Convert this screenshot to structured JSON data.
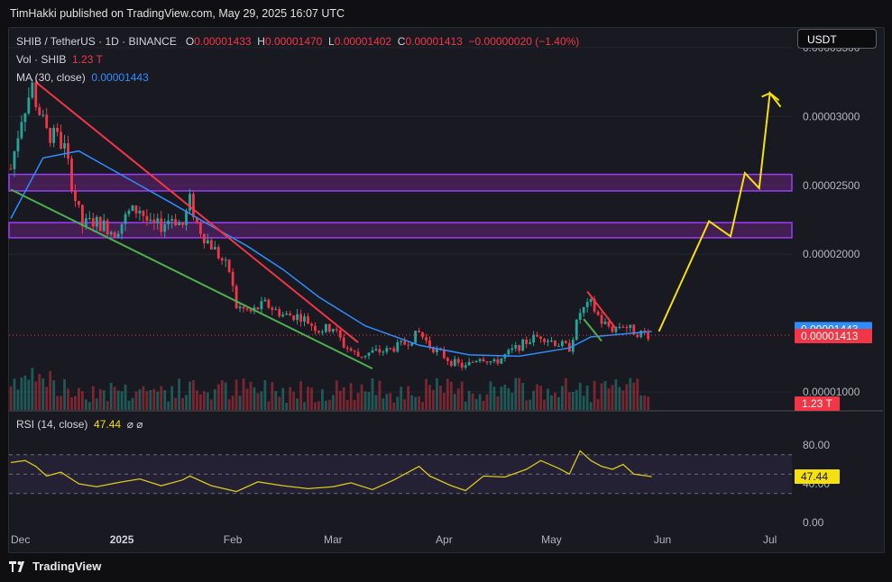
{
  "publisher": "TimHakki published on TradingView.com, May 29, 2025 16:07 UTC",
  "legend": {
    "symbol": "SHIB / TetherUS · 1D · BINANCE",
    "o_label": "O",
    "o_value": "0.00001433",
    "h_label": "H",
    "h_value": "0.00001470",
    "l_label": "L",
    "l_value": "0.00001402",
    "c_label": "C",
    "c_value": "0.00001413",
    "change": "−0.00000020 (−1.40%)",
    "vol_label": "Vol · SHIB",
    "vol_value": "1.23 T",
    "ma_label": "MA (30, close)",
    "ma_value": "0.00001443"
  },
  "currency_button": "USDT",
  "rsi_legend": {
    "label": "RSI (14, close)",
    "value": "47.44",
    "icons": "⌀ ⌀"
  },
  "footer": {
    "brand": "TradingView",
    "logo": "tradingview-logo"
  },
  "colors": {
    "up": "#26a69a",
    "down": "#f23645",
    "ma": "#2f8cff",
    "zone": "#9c27b0",
    "projection": "#f5e10a",
    "rsi": "#d8c81e"
  },
  "chart_data": {
    "type": "candlestick",
    "price_axis": {
      "ticks": [
        "0.00003500",
        "0.00003000",
        "0.00002500",
        "0.00002000",
        "0.00001000"
      ],
      "range": [
        8.7e-06,
        3.65e-05
      ]
    },
    "time_axis": {
      "ticks": [
        "Dec",
        "2025",
        "Feb",
        "Mar",
        "Apr",
        "May",
        "Jun",
        "Jul"
      ]
    },
    "price_labels": {
      "ma": "0.00001443",
      "last": "0.00001413",
      "volume": "1.23 T"
    },
    "close_path": [
      [
        "2024-12-01",
        2.62e-05
      ],
      [
        "2024-12-04",
        3e-05
      ],
      [
        "2024-12-07",
        3.22e-05
      ],
      [
        "2024-12-08",
        3.11e-05
      ],
      [
        "2024-12-11",
        2.88e-05
      ],
      [
        "2024-12-14",
        2.84e-05
      ],
      [
        "2024-12-16",
        2.77e-05
      ],
      [
        "2024-12-19",
        2.4e-05
      ],
      [
        "2024-12-21",
        2.21e-05
      ],
      [
        "2024-12-24",
        2.24e-05
      ],
      [
        "2024-12-27",
        2.21e-05
      ],
      [
        "2024-12-30",
        2.16e-05
      ],
      [
        "2025-01-03",
        2.3e-05
      ],
      [
        "2025-01-06",
        2.33e-05
      ],
      [
        "2025-01-09",
        2.2e-05
      ],
      [
        "2025-01-12",
        2.21e-05
      ],
      [
        "2025-01-15",
        2.27e-05
      ],
      [
        "2025-01-18",
        2.21e-05
      ],
      [
        "2025-01-20",
        2.39e-05
      ],
      [
        "2025-01-22",
        2.22e-05
      ],
      [
        "2025-01-24",
        2.13e-05
      ],
      [
        "2025-01-27",
        2.03e-05
      ],
      [
        "2025-01-31",
        1.88e-05
      ],
      [
        "2025-02-02",
        1.62e-05
      ],
      [
        "2025-02-06",
        1.58e-05
      ],
      [
        "2025-02-10",
        1.64e-05
      ],
      [
        "2025-02-15",
        1.56e-05
      ],
      [
        "2025-02-20",
        1.55e-05
      ],
      [
        "2025-02-25",
        1.45e-05
      ],
      [
        "2025-03-01",
        1.47e-05
      ],
      [
        "2025-03-04",
        1.34e-05
      ],
      [
        "2025-03-08",
        1.26e-05
      ],
      [
        "2025-03-12",
        1.29e-05
      ],
      [
        "2025-03-16",
        1.3e-05
      ],
      [
        "2025-03-21",
        1.35e-05
      ],
      [
        "2025-03-25",
        1.43e-05
      ],
      [
        "2025-03-28",
        1.34e-05
      ],
      [
        "2025-04-03",
        1.22e-05
      ],
      [
        "2025-04-07",
        1.18e-05
      ],
      [
        "2025-04-11",
        1.26e-05
      ],
      [
        "2025-04-15",
        1.21e-05
      ],
      [
        "2025-04-20",
        1.3e-05
      ],
      [
        "2025-04-25",
        1.38e-05
      ],
      [
        "2025-04-28",
        1.41e-05
      ],
      [
        "2025-05-02",
        1.36e-05
      ],
      [
        "2025-05-06",
        1.32e-05
      ],
      [
        "2025-05-09",
        1.58e-05
      ],
      [
        "2025-05-12",
        1.64e-05
      ],
      [
        "2025-05-15",
        1.51e-05
      ],
      [
        "2025-05-18",
        1.46e-05
      ],
      [
        "2025-05-21",
        1.49e-05
      ],
      [
        "2025-05-24",
        1.44e-05
      ],
      [
        "2025-05-29",
        1.41e-05
      ]
    ],
    "ma_path": [
      [
        "2024-12-01",
        2.26e-05
      ],
      [
        "2024-12-10",
        2.7e-05
      ],
      [
        "2024-12-20",
        2.75e-05
      ],
      [
        "2025-01-02",
        2.56e-05
      ],
      [
        "2025-01-15",
        2.37e-05
      ],
      [
        "2025-01-25",
        2.22e-05
      ],
      [
        "2025-02-05",
        2.06e-05
      ],
      [
        "2025-02-15",
        1.89e-05
      ],
      [
        "2025-02-25",
        1.69e-05
      ],
      [
        "2025-03-10",
        1.48e-05
      ],
      [
        "2025-03-25",
        1.34e-05
      ],
      [
        "2025-04-08",
        1.27e-05
      ],
      [
        "2025-04-22",
        1.26e-05
      ],
      [
        "2025-05-06",
        1.32e-05
      ],
      [
        "2025-05-12",
        1.4e-05
      ],
      [
        "2025-05-29",
        1.44e-05
      ]
    ],
    "zones": [
      {
        "from": 2.46e-05,
        "to": 2.58e-05
      },
      {
        "from": 2.12e-05,
        "to": 2.23e-05
      }
    ],
    "trendlines": [
      {
        "color": "red",
        "points": [
          [
            "2024-12-08",
            3.25e-05
          ],
          [
            "2025-03-08",
            1.36e-05
          ]
        ]
      },
      {
        "color": "green",
        "points": [
          [
            "2024-12-01",
            2.47e-05
          ],
          [
            "2025-03-12",
            1.17e-05
          ]
        ]
      },
      {
        "color": "red",
        "points": [
          [
            "2025-05-11",
            1.73e-05
          ],
          [
            "2025-05-19",
            1.46e-05
          ]
        ]
      },
      {
        "color": "green",
        "points": [
          [
            "2025-05-10",
            1.53e-05
          ],
          [
            "2025-05-15",
            1.37e-05
          ]
        ]
      }
    ],
    "projection": [
      [
        "2025-05-31",
        1.44e-05
      ],
      [
        "2025-06-14",
        2.24e-05
      ],
      [
        "2025-06-20",
        2.13e-05
      ],
      [
        "2025-06-24",
        2.59e-05
      ],
      [
        "2025-06-28",
        2.48e-05
      ],
      [
        "2025-07-01",
        3.17e-05
      ],
      [
        "2025-07-04",
        3.07e-05
      ]
    ],
    "rsi": {
      "ticks": [
        "80.00",
        "40.00",
        "0.00"
      ],
      "upper": 70,
      "mid": 50,
      "lower": 30,
      "value": 47.44,
      "series": [
        [
          "2024-12-01",
          62
        ],
        [
          "2024-12-05",
          64
        ],
        [
          "2024-12-08",
          58
        ],
        [
          "2024-12-11",
          48
        ],
        [
          "2024-12-15",
          52
        ],
        [
          "2024-12-20",
          40
        ],
        [
          "2024-12-25",
          37
        ],
        [
          "2025-01-01",
          42
        ],
        [
          "2025-01-06",
          45
        ],
        [
          "2025-01-12",
          38
        ],
        [
          "2025-01-18",
          44
        ],
        [
          "2025-01-20",
          48
        ],
        [
          "2025-01-26",
          38
        ],
        [
          "2025-02-02",
          32
        ],
        [
          "2025-02-08",
          42
        ],
        [
          "2025-02-15",
          38
        ],
        [
          "2025-02-22",
          35
        ],
        [
          "2025-03-01",
          37
        ],
        [
          "2025-03-06",
          41
        ],
        [
          "2025-03-12",
          34
        ],
        [
          "2025-03-18",
          44
        ],
        [
          "2025-03-25",
          58
        ],
        [
          "2025-03-28",
          48
        ],
        [
          "2025-04-03",
          38
        ],
        [
          "2025-04-07",
          33
        ],
        [
          "2025-04-12",
          48
        ],
        [
          "2025-04-18",
          47
        ],
        [
          "2025-04-24",
          55
        ],
        [
          "2025-04-28",
          64
        ],
        [
          "2025-05-03",
          56
        ],
        [
          "2025-05-06",
          50
        ],
        [
          "2025-05-09",
          74
        ],
        [
          "2025-05-12",
          64
        ],
        [
          "2025-05-15",
          58
        ],
        [
          "2025-05-18",
          55
        ],
        [
          "2025-05-21",
          60
        ],
        [
          "2025-05-24",
          50
        ],
        [
          "2025-05-29",
          47.44
        ]
      ]
    }
  }
}
